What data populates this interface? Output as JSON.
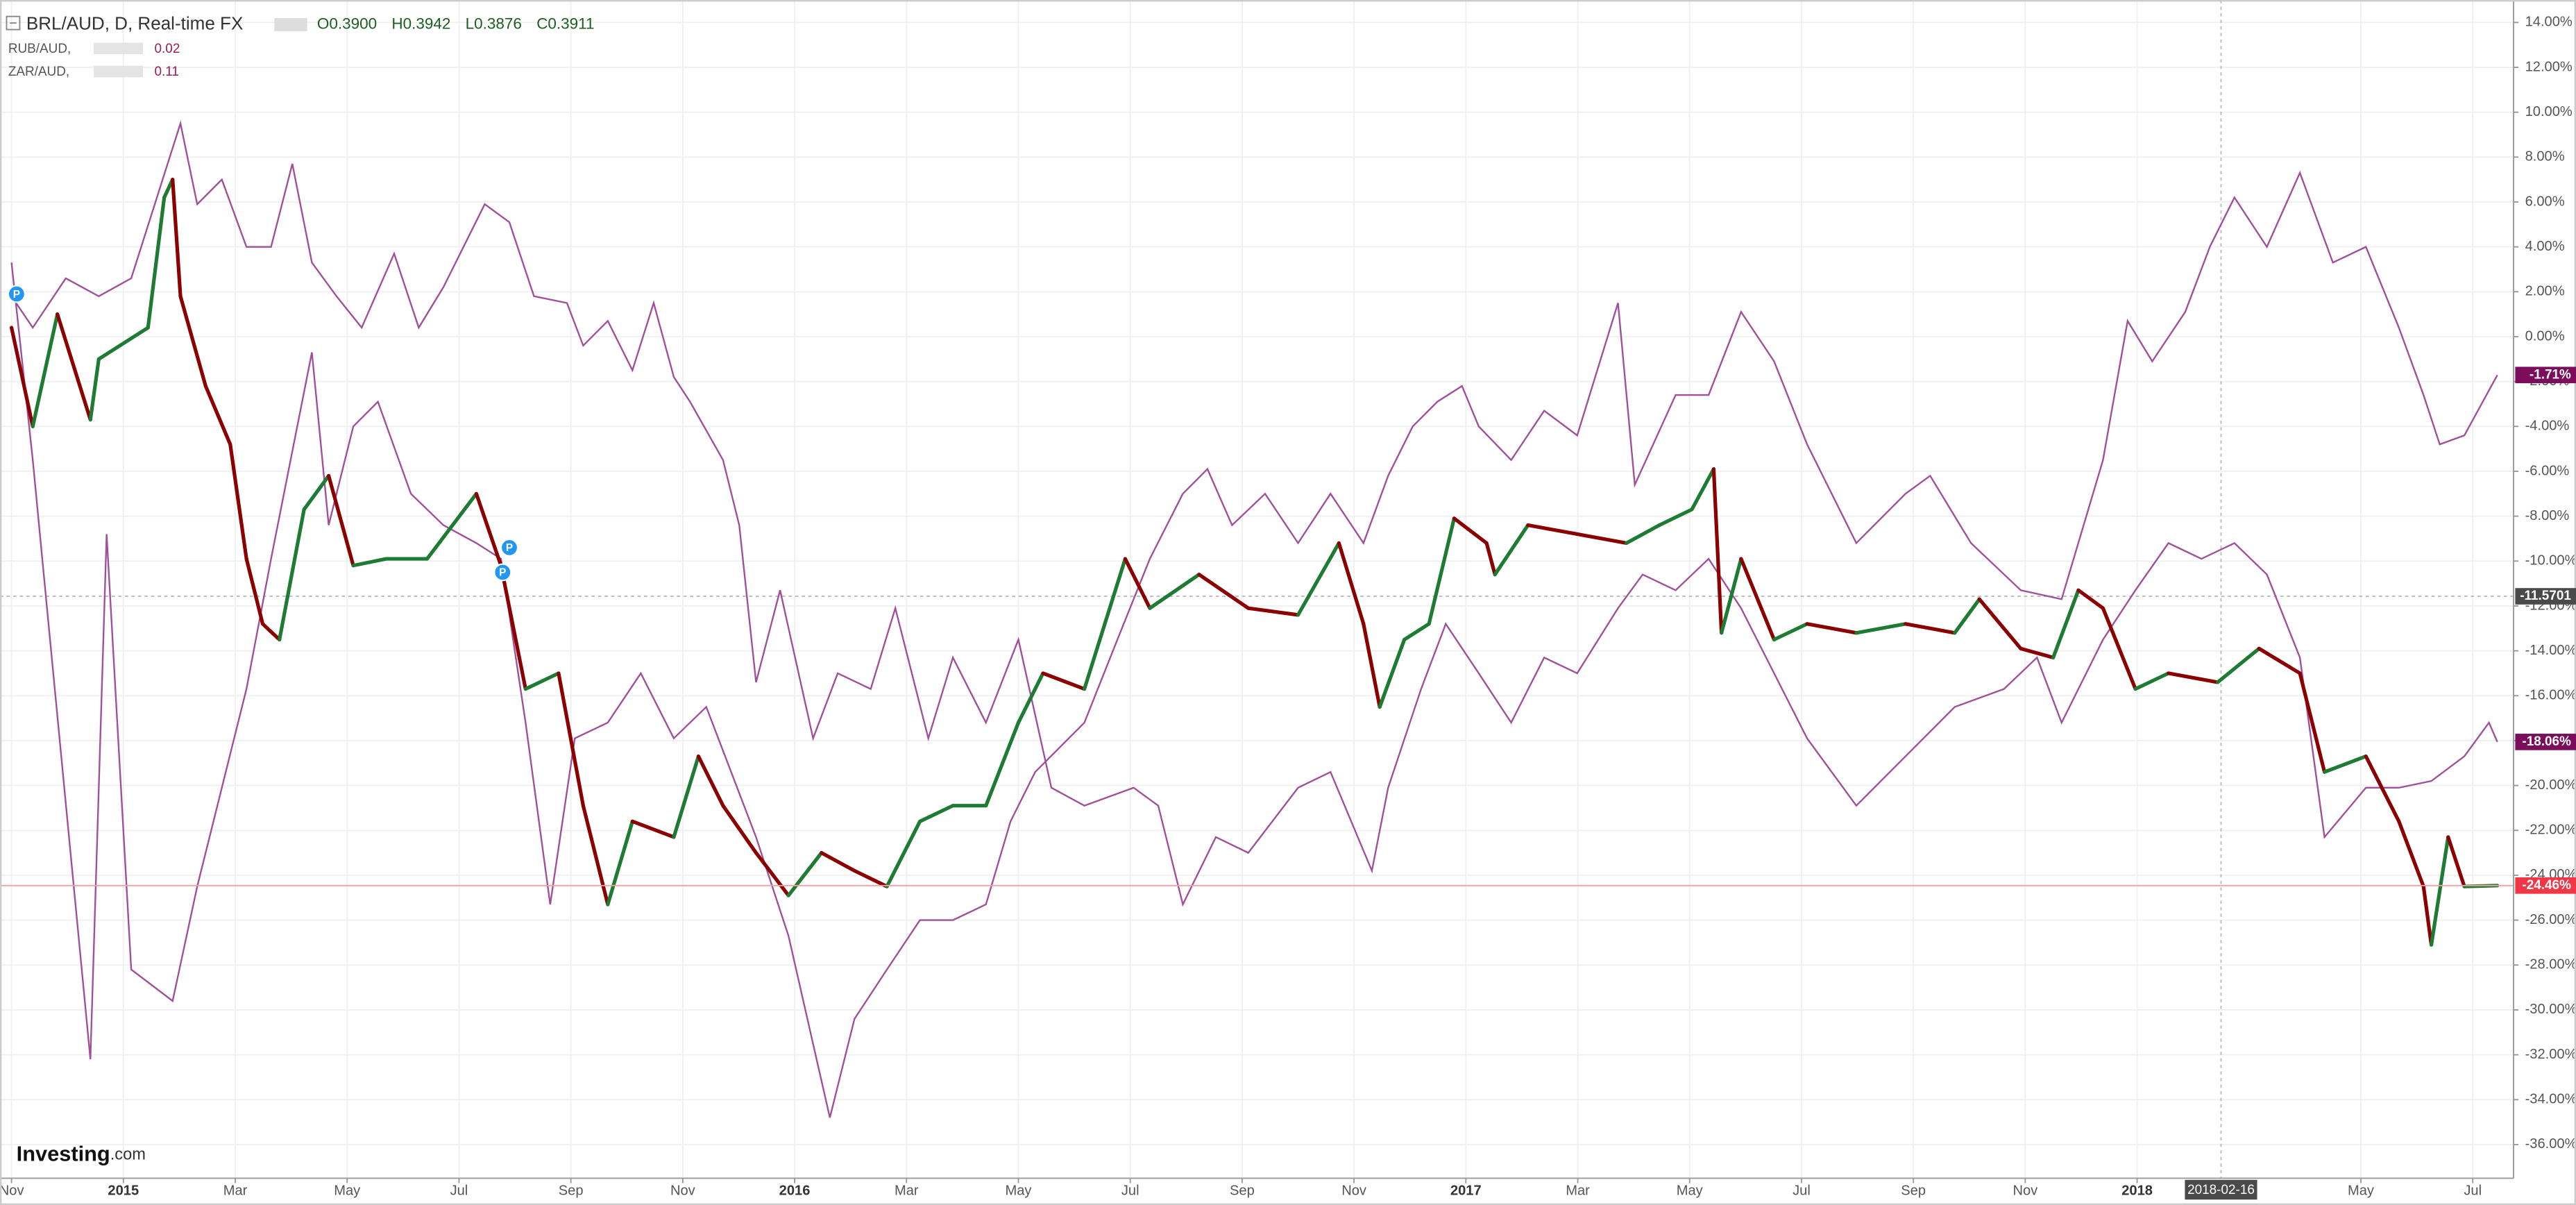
{
  "chart_data": {
    "type": "line",
    "title": "BRL/AUD, D, Real-time FX",
    "ohlc": [
      "O0.3900",
      "H0.3942",
      "L0.3876",
      "C0.3911"
    ],
    "logo": {
      "name": "Investing",
      "suffix": ".com"
    },
    "xlim": [
      -0.206,
      44.73
    ],
    "xticks": [
      {
        "value": 0,
        "label": "Nov"
      },
      {
        "value": 2,
        "label": "2015"
      },
      {
        "value": 4,
        "label": "Mar"
      },
      {
        "value": 6,
        "label": "May"
      },
      {
        "value": 8,
        "label": "Jul"
      },
      {
        "value": 10,
        "label": "Sep"
      },
      {
        "value": 12,
        "label": "Nov"
      },
      {
        "value": 14,
        "label": "2016"
      },
      {
        "value": 16,
        "label": "Mar"
      },
      {
        "value": 18,
        "label": "May"
      },
      {
        "value": 20,
        "label": "Jul"
      },
      {
        "value": 22,
        "label": "Sep"
      },
      {
        "value": 24,
        "label": "Nov"
      },
      {
        "value": 26,
        "label": "2017"
      },
      {
        "value": 28,
        "label": "Mar"
      },
      {
        "value": 30,
        "label": "May"
      },
      {
        "value": 32,
        "label": "Jul"
      },
      {
        "value": 34,
        "label": "Sep"
      },
      {
        "value": 36,
        "label": "Nov"
      },
      {
        "value": 38,
        "label": "2018"
      },
      {
        "value": 42,
        "label": "May"
      },
      {
        "value": 44,
        "label": "Jul"
      }
    ],
    "ylim": [
      -37.5,
      15
    ],
    "yticks": [
      {
        "value": 14,
        "label": "14.00%"
      },
      {
        "value": 12,
        "label": "12.00%"
      },
      {
        "value": 10,
        "label": "10.00%"
      },
      {
        "value": 8,
        "label": "8.00%"
      },
      {
        "value": 6,
        "label": "6.00%"
      },
      {
        "value": 4,
        "label": "4.00%"
      },
      {
        "value": 2,
        "label": "2.00%"
      },
      {
        "value": 0,
        "label": "0.00%"
      },
      {
        "value": -2,
        "label": "-2.00%"
      },
      {
        "value": -4,
        "label": "-4.00%"
      },
      {
        "value": -6,
        "label": "-6.00%"
      },
      {
        "value": -8,
        "label": "-8.00%"
      },
      {
        "value": -10,
        "label": "-10.00%"
      },
      {
        "value": -12,
        "label": "-12.00%"
      },
      {
        "value": -14,
        "label": "-14.00%"
      },
      {
        "value": -16,
        "label": "-16.00%"
      },
      {
        "value": -18,
        "label": "-18.00%"
      },
      {
        "value": -20,
        "label": "-20.00%"
      },
      {
        "value": -22,
        "label": "-22.00%"
      },
      {
        "value": -24,
        "label": "-24.00%"
      },
      {
        "value": -26,
        "label": "-26.00%"
      },
      {
        "value": -28,
        "label": "-28.00%"
      },
      {
        "value": -30,
        "label": "-30.00%"
      },
      {
        "value": -32,
        "label": "-32.00%"
      },
      {
        "value": -34,
        "label": "-34.00%"
      },
      {
        "value": -36,
        "label": "-36.00%"
      }
    ],
    "grid": true,
    "series": [
      {
        "color": "#8b0000",
        "up_color": "#1e7b34",
        "last_label": "-24.46%",
        "x": [
          0,
          0.38,
          0.82,
          1.41,
          1.56,
          2.44,
          2.73,
          2.88,
          3.02,
          3.47,
          3.91,
          4.2,
          4.49,
          4.79,
          5.23,
          5.67,
          6.11,
          6.7,
          7.43,
          8.31,
          8.75,
          9.19,
          9.78,
          10.22,
          10.66,
          11.1,
          11.84,
          12.28,
          12.72,
          13.31,
          13.89,
          14.48,
          15.07,
          15.65,
          16.24,
          16.83,
          17.42,
          18.0,
          18.44,
          19.18,
          19.91,
          20.35,
          21.23,
          22.11,
          23.0,
          23.73,
          24.17,
          24.46,
          24.9,
          25.34,
          25.79,
          26.37,
          26.52,
          27.11,
          27.99,
          28.87,
          29.46,
          30.04,
          30.43,
          30.57,
          30.92,
          31.51,
          32.1,
          32.98,
          33.86,
          34.74,
          35.18,
          35.92,
          36.5,
          36.95,
          37.39,
          37.97,
          38.56,
          39.44,
          40.18,
          40.91,
          41.35,
          42.09,
          42.68,
          43.12,
          43.26,
          43.56,
          43.85,
          44.44
        ],
        "values": [
          0.4,
          -4,
          1,
          -3.7,
          -1,
          0.4,
          6.2,
          7,
          1.8,
          -2.2,
          -4.8,
          -9.9,
          -12.8,
          -13.5,
          -7.7,
          -6.2,
          -10.2,
          -9.9,
          -9.9,
          -7,
          -10.2,
          -15.7,
          -15,
          -20.9,
          -25.3,
          -21.6,
          -22.3,
          -18.7,
          -20.9,
          -23,
          -24.9,
          -23,
          -23.8,
          -24.5,
          -21.6,
          -20.9,
          -20.9,
          -17.2,
          -15,
          -15.7,
          -9.9,
          -12.1,
          -10.6,
          -12.1,
          -12.4,
          -9.2,
          -12.8,
          -16.5,
          -13.5,
          -12.8,
          -8.1,
          -9.2,
          -10.6,
          -8.4,
          -8.8,
          -9.2,
          -8.4,
          -7.7,
          -5.9,
          -13.2,
          -9.9,
          -13.5,
          -12.8,
          -13.2,
          -12.8,
          -13.2,
          -11.7,
          -13.9,
          -14.3,
          -11.3,
          -12.1,
          -15.7,
          -15,
          -15.4,
          -13.9,
          -15,
          -19.4,
          -18.7,
          -21.6,
          -24.5,
          -27.1,
          -22.3,
          -24.5,
          -24.46
        ]
      },
      {
        "name": "RUB/AUD,",
        "last": "0.02",
        "color": "#a0509b",
        "last_label": "-1.71%",
        "x": [
          0,
          0.38,
          1.41,
          1.7,
          2.14,
          2.88,
          3.32,
          4.2,
          4.64,
          5.37,
          5.67,
          6.11,
          6.55,
          7.14,
          7.72,
          8.31,
          8.75,
          9.19,
          9.63,
          10.07,
          10.66,
          11.25,
          11.84,
          12.42,
          13.31,
          13.89,
          14.63,
          15.07,
          15.65,
          16.24,
          16.83,
          17.42,
          17.86,
          18.3,
          19.18,
          19.77,
          20.35,
          20.94,
          21.38,
          21.82,
          22.41,
          23.0,
          23.58,
          24.17,
          24.61,
          25.05,
          25.49,
          25.93,
          26.23,
          26.81,
          27.4,
          27.99,
          28.72,
          29.02,
          29.75,
          30.34,
          30.92,
          31.51,
          32.1,
          32.98,
          33.86,
          34.3,
          35.03,
          35.92,
          36.65,
          37.39,
          37.83,
          38.27,
          38.86,
          39.3,
          39.74,
          40.32,
          40.91,
          41.5,
          42.09,
          42.68,
          43.12,
          43.41,
          43.85,
          44.44
        ],
        "values": [
          3.3,
          -5.5,
          -32.2,
          -8.8,
          -28.2,
          -29.6,
          -24.5,
          -15.7,
          -9.9,
          -0.7,
          -8.4,
          -4,
          -2.9,
          -7,
          -8.4,
          -9.2,
          -9.9,
          -17.2,
          -25.3,
          -17.9,
          -17.2,
          -15,
          -17.9,
          -16.5,
          -22.3,
          -26.7,
          -34.8,
          -30.4,
          -28.2,
          -26,
          -26,
          -25.3,
          -21.6,
          -19.4,
          -17.2,
          -13.5,
          -9.9,
          -7,
          -5.9,
          -8.4,
          -7,
          -9.2,
          -7,
          -9.2,
          -6.2,
          -4,
          -2.9,
          -2.2,
          -4,
          -5.5,
          -3.3,
          -4.4,
          1.5,
          -6.6,
          -2.6,
          -2.6,
          1.1,
          -1.1,
          -4.8,
          -9.2,
          -7,
          -6.2,
          -9.2,
          -11.3,
          -11.7,
          -5.5,
          0.7,
          -1.1,
          1.1,
          4,
          6.2,
          4,
          7.3,
          3.3,
          4,
          0.4,
          -2.6,
          -4.8,
          -4.4,
          -1.71
        ]
      },
      {
        "name": "ZAR/AUD,",
        "last": "0.11",
        "color": "#a0509b",
        "last_label": "-18.06%",
        "x": [
          0,
          0.38,
          0.97,
          1.56,
          2.14,
          3.02,
          3.32,
          3.76,
          4.2,
          4.64,
          5.02,
          5.37,
          5.81,
          6.26,
          6.84,
          7.28,
          7.72,
          8.46,
          8.9,
          9.34,
          9.93,
          10.22,
          10.66,
          11.1,
          11.48,
          11.84,
          12.13,
          12.72,
          13.01,
          13.31,
          13.74,
          14.33,
          14.77,
          15.36,
          15.8,
          16.39,
          16.83,
          17.42,
          18.0,
          18.59,
          19.18,
          20.06,
          20.5,
          20.94,
          21.53,
          22.11,
          23.0,
          23.58,
          24.32,
          24.61,
          25.2,
          25.64,
          26.23,
          26.81,
          27.4,
          27.99,
          28.72,
          29.16,
          29.75,
          30.34,
          30.92,
          31.51,
          32.1,
          32.98,
          33.86,
          34.74,
          35.62,
          36.21,
          36.65,
          37.39,
          37.97,
          38.56,
          39.15,
          39.74,
          40.32,
          40.91,
          41.35,
          42.09,
          42.68,
          43.26,
          43.85,
          44.29,
          44.44
        ],
        "values": [
          1.8,
          0.4,
          2.6,
          1.8,
          2.6,
          9.5,
          5.9,
          7,
          4,
          4,
          7.7,
          3.3,
          1.8,
          0.4,
          3.7,
          0.4,
          2.2,
          5.9,
          5.1,
          1.8,
          1.5,
          -0.4,
          0.7,
          -1.5,
          1.5,
          -1.8,
          -2.9,
          -5.5,
          -8.4,
          -15.4,
          -11.3,
          -17.9,
          -15,
          -15.7,
          -12.1,
          -17.9,
          -14.3,
          -17.2,
          -13.5,
          -20.1,
          -20.9,
          -20.1,
          -20.9,
          -25.3,
          -22.3,
          -23,
          -20.1,
          -19.4,
          -23.8,
          -20.1,
          -15.7,
          -12.8,
          -15,
          -17.2,
          -14.3,
          -15,
          -12.1,
          -10.6,
          -11.3,
          -9.9,
          -12.1,
          -15,
          -17.9,
          -20.9,
          -18.7,
          -16.5,
          -15.7,
          -14.3,
          -17.2,
          -13.5,
          -11.3,
          -9.2,
          -9.9,
          -9.2,
          -10.6,
          -14.3,
          -22.3,
          -20.1,
          -20.1,
          -19.8,
          -18.7,
          -17.2,
          -18.06
        ]
      }
    ],
    "events": [
      {
        "x": 0.09,
        "y": 1.9,
        "label": "P"
      },
      {
        "x": 8.9,
        "y": -9.4,
        "label": "P"
      },
      {
        "x": 8.78,
        "y": -10.5,
        "label": "P"
      }
    ],
    "crosshair": {
      "x": 39.5,
      "x_label": "2018-02-16",
      "y": -11.5701
    }
  }
}
